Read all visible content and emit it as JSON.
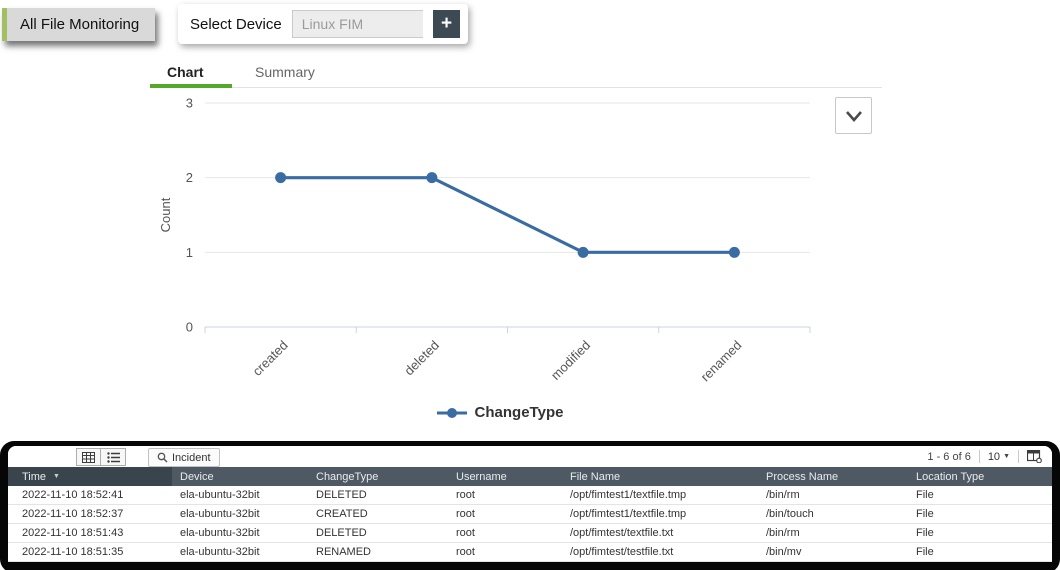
{
  "header": {
    "all_file_monitoring_label": "All File Monitoring",
    "select_device_label": "Select Device",
    "device_value": "Linux FIM",
    "add_device_label": "+"
  },
  "tabs": {
    "chart_label": "Chart",
    "summary_label": "Summary"
  },
  "chart_data": {
    "type": "line",
    "categories": [
      "created",
      "deleted",
      "modified",
      "renamed"
    ],
    "series": [
      {
        "name": "ChangeType",
        "values": [
          2,
          2,
          1,
          1
        ]
      }
    ],
    "title": "",
    "xlabel": "",
    "ylabel": "Count",
    "ylim": [
      0,
      3
    ],
    "yticks": [
      0,
      1,
      2,
      3
    ],
    "grid": true,
    "legend_position": "bottom"
  },
  "table": {
    "toolbar": {
      "incident_label": "Incident",
      "range_label": "1 - 6 of 6",
      "page_size": "10"
    },
    "columns": [
      "Time",
      "Device",
      "ChangeType",
      "Username",
      "File Name",
      "Process Name",
      "Location Type"
    ],
    "sorted_column": "Time",
    "rows": [
      [
        "2022-11-10 18:52:41",
        "ela-ubuntu-32bit",
        "DELETED",
        "root",
        "/opt/fimtest1/textfile.tmp",
        "/bin/rm",
        "File"
      ],
      [
        "2022-11-10 18:52:37",
        "ela-ubuntu-32bit",
        "CREATED",
        "root",
        "/opt/fimtest1/textfile.tmp",
        "/bin/touch",
        "File"
      ],
      [
        "2022-11-10 18:51:43",
        "ela-ubuntu-32bit",
        "DELETED",
        "root",
        "/opt/fimtest/textfile.txt",
        "/bin/rm",
        "File"
      ],
      [
        "2022-11-10 18:51:35",
        "ela-ubuntu-32bit",
        "RENAMED",
        "root",
        "/opt/fimtest/testfile.txt",
        "/bin/mv",
        "File"
      ]
    ]
  },
  "icons": {
    "sort_caret": "▼",
    "dropdown_caret": "▼"
  },
  "colors": {
    "accent_green": "#55a82a",
    "strip_green": "#a2bf61",
    "line_blue": "#3a6ca4",
    "grid_gray": "#e7e7e7",
    "axis_blue": "#c9d4e2",
    "header_dark": "#4e5963",
    "header_sorted": "#3a444d"
  }
}
